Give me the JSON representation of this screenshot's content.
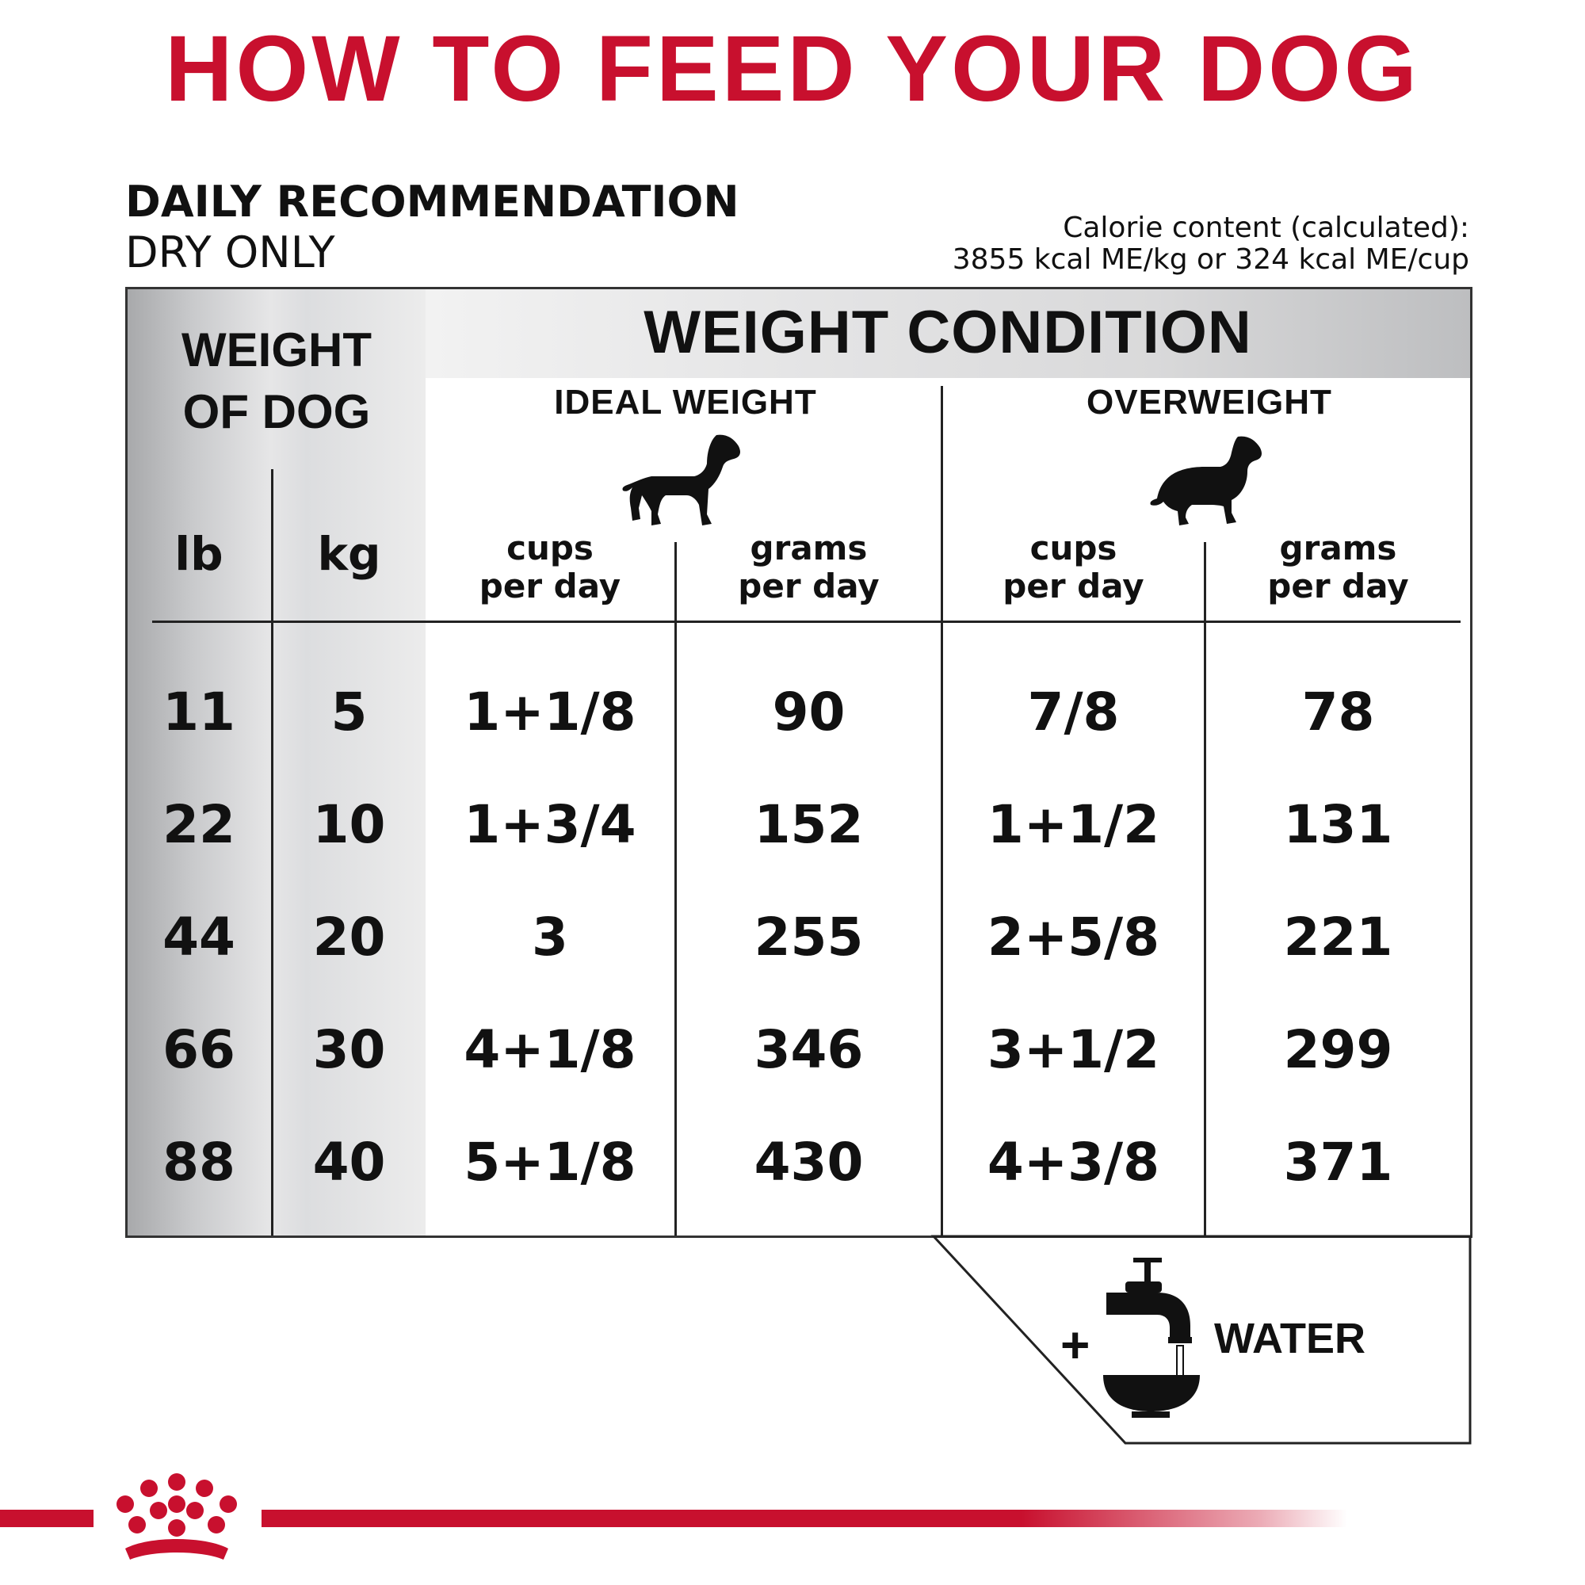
{
  "title": "HOW TO FEED YOUR DOG",
  "recommendation": {
    "title": "DAILY RECOMMENDATION",
    "subtitle": "DRY ONLY"
  },
  "calorie": {
    "line1": "Calorie content (calculated):",
    "line2": "3855 kcal ME/kg or 324 kcal ME/cup"
  },
  "table": {
    "weight_of_dog_line1": "WEIGHT",
    "weight_of_dog_line2": "OF DOG",
    "weight_condition": "WEIGHT CONDITION",
    "ideal_weight": "IDEAL WEIGHT",
    "overweight": "OVERWEIGHT",
    "unit_lb": "lb",
    "unit_kg": "kg",
    "cups_line1": "cups",
    "cups_line2": "per day",
    "grams_line1": "grams",
    "grams_line2": "per day",
    "rows": [
      {
        "lb": "11",
        "kg": "5",
        "ideal_cups": "1+1/8",
        "ideal_grams": "90",
        "over_cups": "7/8",
        "over_grams": "78"
      },
      {
        "lb": "22",
        "kg": "10",
        "ideal_cups": "1+3/4",
        "ideal_grams": "152",
        "over_cups": "1+1/2",
        "over_grams": "131"
      },
      {
        "lb": "44",
        "kg": "20",
        "ideal_cups": "3",
        "ideal_grams": "255",
        "over_cups": "2+5/8",
        "over_grams": "221"
      },
      {
        "lb": "66",
        "kg": "30",
        "ideal_cups": "4+1/8",
        "ideal_grams": "346",
        "over_cups": "3+1/2",
        "over_grams": "299"
      },
      {
        "lb": "88",
        "kg": "40",
        "ideal_cups": "5+1/8",
        "ideal_grams": "430",
        "over_cups": "4+3/8",
        "over_grams": "371"
      }
    ]
  },
  "water": {
    "plus": "+",
    "label": "WATER"
  },
  "icons": {
    "ideal_dog": "ideal-weight-dog-icon",
    "overweight_dog": "overweight-dog-icon",
    "water_tap": "water-tap-icon",
    "bowl": "water-bowl-icon",
    "brand_crown": "crown-logo"
  },
  "colors": {
    "accent": "#c8102e",
    "text": "#111111"
  }
}
